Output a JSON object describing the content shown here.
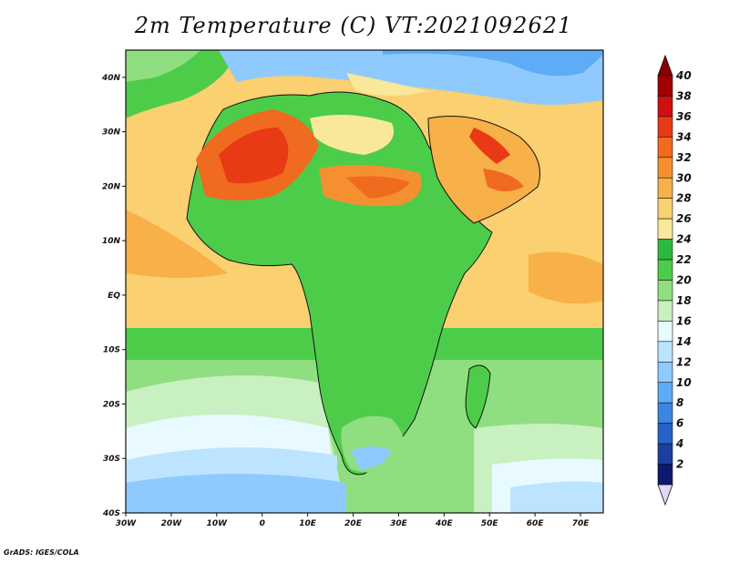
{
  "title": "2m Temperature (C) VT:2021092621",
  "footer": "GrADS: IGES/COLA",
  "map": {
    "lon_ticks": [
      "30W",
      "20W",
      "10W",
      "0",
      "10E",
      "20E",
      "30E",
      "40E",
      "50E",
      "60E",
      "70E"
    ],
    "lat_ticks": [
      "40N",
      "30N",
      "20N",
      "10N",
      "EQ",
      "10S",
      "20S",
      "30S",
      "40S"
    ]
  },
  "colorbar": {
    "labels": [
      "40",
      "38",
      "36",
      "34",
      "32",
      "30",
      "28",
      "26",
      "24",
      "22",
      "20",
      "18",
      "16",
      "14",
      "12",
      "10",
      "8",
      "6",
      "4",
      "2"
    ],
    "colors": [
      "#a00000",
      "#d01010",
      "#e83a14",
      "#f06a20",
      "#f59030",
      "#f8b048",
      "#fad070",
      "#fae89a",
      "#2fb840",
      "#4dcc4a",
      "#8fdf80",
      "#c8f0c0",
      "#e8faff",
      "#bde4ff",
      "#8fcaff",
      "#5eacf5",
      "#3a86e0",
      "#2563c8",
      "#1a3f9e",
      "#0b1a6e"
    ],
    "top_arrow_color": "#8b0000",
    "bottom_arrow_color": "#e0d8f8"
  },
  "chart_data": {
    "type": "heatmap",
    "title": "2m Temperature (C) VT:2021092621",
    "xlabel": "",
    "ylabel": "",
    "x_range": [
      "30W",
      "75E"
    ],
    "y_range": [
      "40S",
      "45N"
    ],
    "color_scale": [
      2,
      4,
      6,
      8,
      10,
      12,
      14,
      16,
      18,
      20,
      22,
      24,
      26,
      28,
      30,
      32,
      34,
      36,
      38,
      40
    ]
  }
}
